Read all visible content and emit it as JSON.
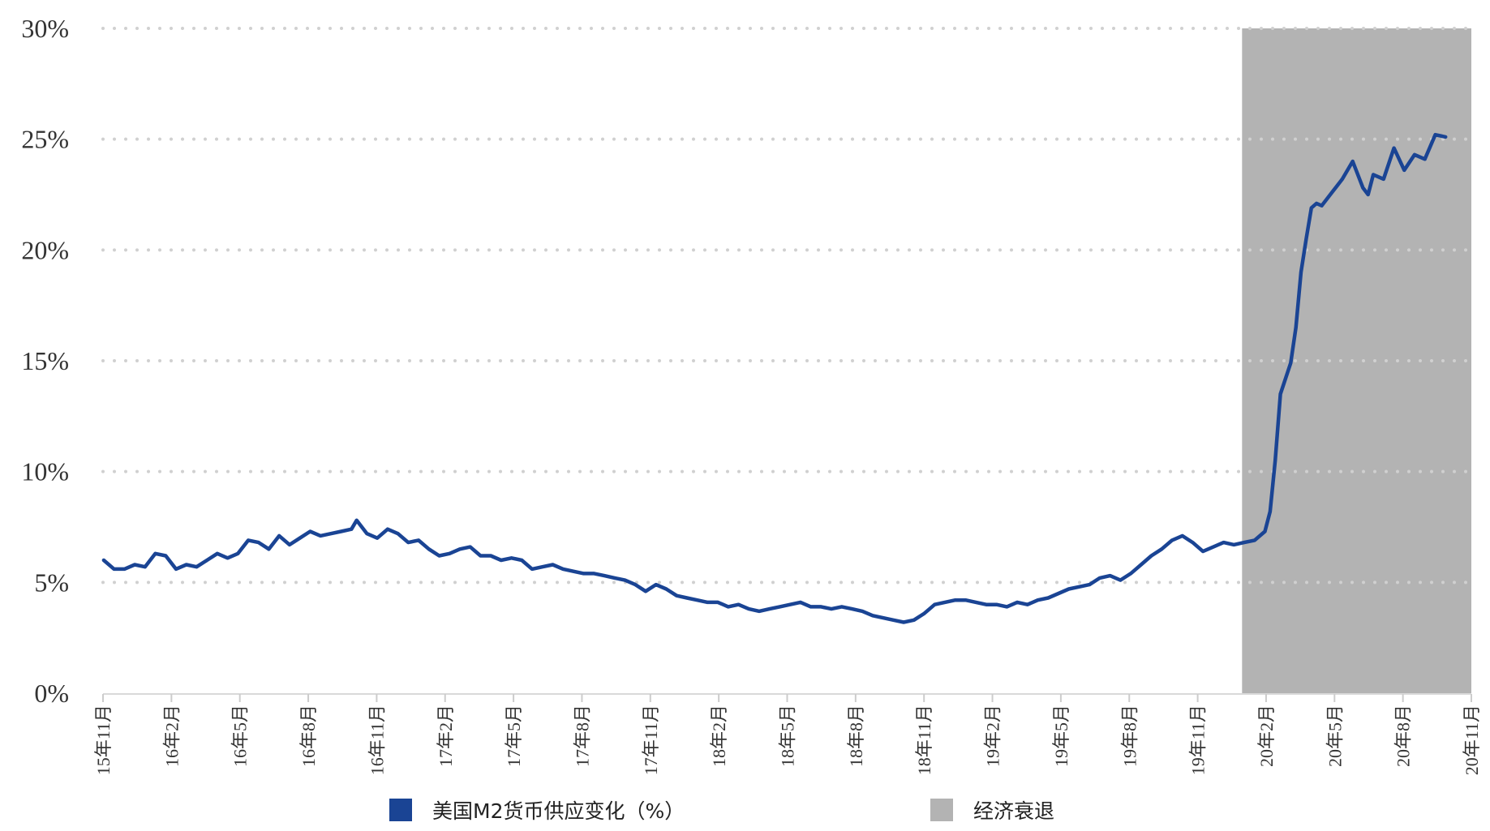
{
  "chart_data": {
    "type": "line",
    "y_axis": {
      "min": 0,
      "max": 30,
      "ticks": [
        "0%",
        "5%",
        "10%",
        "15%",
        "20%",
        "25%",
        "30%"
      ]
    },
    "x_ticks": [
      "15年11月",
      "16年2月",
      "16年5月",
      "16年8月",
      "16年11月",
      "17年2月",
      "17年5月",
      "17年8月",
      "17年11月",
      "18年2月",
      "18年5月",
      "18年8月",
      "18年11月",
      "19年2月",
      "19年5月",
      "19年8月",
      "19年11月",
      "20年2月",
      "20年5月",
      "20年8月",
      "20年11月"
    ],
    "grid": "dotted-horizontal",
    "legend_position": "bottom",
    "colors": {
      "line": "#1a4494",
      "shade": "#b3b3b3"
    },
    "recession": {
      "name": "经济衰退",
      "start": "2020-01-24",
      "end": "2020-11-30"
    },
    "series": [
      {
        "name": "美国M2货币供应变化（%）",
        "color": "#1a4494",
        "points": [
          [
            "2015-11-02",
            6.0
          ],
          [
            "2015-11-16",
            5.6
          ],
          [
            "2015-11-30",
            5.6
          ],
          [
            "2015-12-14",
            5.8
          ],
          [
            "2015-12-28",
            5.7
          ],
          [
            "2016-01-11",
            6.3
          ],
          [
            "2016-01-25",
            6.2
          ],
          [
            "2016-02-08",
            5.6
          ],
          [
            "2016-02-22",
            5.8
          ],
          [
            "2016-03-07",
            5.7
          ],
          [
            "2016-03-21",
            6.0
          ],
          [
            "2016-04-04",
            6.3
          ],
          [
            "2016-04-18",
            6.1
          ],
          [
            "2016-05-02",
            6.3
          ],
          [
            "2016-05-16",
            6.9
          ],
          [
            "2016-05-30",
            6.8
          ],
          [
            "2016-06-13",
            6.5
          ],
          [
            "2016-06-27",
            7.1
          ],
          [
            "2016-07-11",
            6.7
          ],
          [
            "2016-07-25",
            7.0
          ],
          [
            "2016-08-08",
            7.3
          ],
          [
            "2016-08-22",
            7.1
          ],
          [
            "2016-09-05",
            7.2
          ],
          [
            "2016-09-19",
            7.3
          ],
          [
            "2016-10-03",
            7.4
          ],
          [
            "2016-10-10",
            7.8
          ],
          [
            "2016-10-24",
            7.2
          ],
          [
            "2016-11-07",
            7.0
          ],
          [
            "2016-11-21",
            7.4
          ],
          [
            "2016-12-05",
            7.2
          ],
          [
            "2016-12-19",
            6.8
          ],
          [
            "2017-01-02",
            6.9
          ],
          [
            "2017-01-16",
            6.5
          ],
          [
            "2017-01-30",
            6.2
          ],
          [
            "2017-02-13",
            6.3
          ],
          [
            "2017-02-27",
            6.5
          ],
          [
            "2017-03-13",
            6.6
          ],
          [
            "2017-03-27",
            6.2
          ],
          [
            "2017-04-10",
            6.2
          ],
          [
            "2017-04-24",
            6.0
          ],
          [
            "2017-05-08",
            6.1
          ],
          [
            "2017-05-22",
            6.0
          ],
          [
            "2017-06-05",
            5.6
          ],
          [
            "2017-06-19",
            5.7
          ],
          [
            "2017-07-03",
            5.8
          ],
          [
            "2017-07-17",
            5.6
          ],
          [
            "2017-07-31",
            5.5
          ],
          [
            "2017-08-14",
            5.4
          ],
          [
            "2017-08-28",
            5.4
          ],
          [
            "2017-09-11",
            5.3
          ],
          [
            "2017-09-25",
            5.2
          ],
          [
            "2017-10-09",
            5.1
          ],
          [
            "2017-10-23",
            4.9
          ],
          [
            "2017-11-06",
            4.6
          ],
          [
            "2017-11-20",
            4.9
          ],
          [
            "2017-12-04",
            4.7
          ],
          [
            "2017-12-18",
            4.4
          ],
          [
            "2018-01-01",
            4.3
          ],
          [
            "2018-01-15",
            4.2
          ],
          [
            "2018-01-29",
            4.1
          ],
          [
            "2018-02-12",
            4.1
          ],
          [
            "2018-02-26",
            3.9
          ],
          [
            "2018-03-12",
            4.0
          ],
          [
            "2018-03-26",
            3.8
          ],
          [
            "2018-04-09",
            3.7
          ],
          [
            "2018-04-23",
            3.8
          ],
          [
            "2018-05-07",
            3.9
          ],
          [
            "2018-05-21",
            4.0
          ],
          [
            "2018-06-04",
            4.1
          ],
          [
            "2018-06-18",
            3.9
          ],
          [
            "2018-07-02",
            3.9
          ],
          [
            "2018-07-16",
            3.8
          ],
          [
            "2018-07-30",
            3.9
          ],
          [
            "2018-08-13",
            3.8
          ],
          [
            "2018-08-27",
            3.7
          ],
          [
            "2018-09-10",
            3.5
          ],
          [
            "2018-09-24",
            3.4
          ],
          [
            "2018-10-08",
            3.3
          ],
          [
            "2018-10-22",
            3.2
          ],
          [
            "2018-11-05",
            3.3
          ],
          [
            "2018-11-19",
            3.6
          ],
          [
            "2018-12-03",
            4.0
          ],
          [
            "2018-12-17",
            4.1
          ],
          [
            "2018-12-31",
            4.2
          ],
          [
            "2019-01-14",
            4.2
          ],
          [
            "2019-01-28",
            4.1
          ],
          [
            "2019-02-11",
            4.0
          ],
          [
            "2019-02-25",
            4.0
          ],
          [
            "2019-03-11",
            3.9
          ],
          [
            "2019-03-25",
            4.1
          ],
          [
            "2019-04-08",
            4.0
          ],
          [
            "2019-04-22",
            4.2
          ],
          [
            "2019-05-06",
            4.3
          ],
          [
            "2019-05-20",
            4.5
          ],
          [
            "2019-06-03",
            4.7
          ],
          [
            "2019-06-17",
            4.8
          ],
          [
            "2019-07-01",
            4.9
          ],
          [
            "2019-07-15",
            5.2
          ],
          [
            "2019-07-29",
            5.3
          ],
          [
            "2019-08-12",
            5.1
          ],
          [
            "2019-08-26",
            5.4
          ],
          [
            "2019-09-09",
            5.8
          ],
          [
            "2019-09-23",
            6.2
          ],
          [
            "2019-10-07",
            6.5
          ],
          [
            "2019-10-21",
            6.9
          ],
          [
            "2019-11-04",
            7.1
          ],
          [
            "2019-11-18",
            6.8
          ],
          [
            "2019-12-02",
            6.4
          ],
          [
            "2019-12-16",
            6.6
          ],
          [
            "2019-12-30",
            6.8
          ],
          [
            "2020-01-13",
            6.7
          ],
          [
            "2020-01-27",
            6.8
          ],
          [
            "2020-02-10",
            6.9
          ],
          [
            "2020-02-24",
            7.3
          ],
          [
            "2020-03-02",
            8.2
          ],
          [
            "2020-03-09",
            10.5
          ],
          [
            "2020-03-16",
            13.5
          ],
          [
            "2020-03-30",
            14.9
          ],
          [
            "2020-04-06",
            16.5
          ],
          [
            "2020-04-13",
            19.0
          ],
          [
            "2020-04-20",
            20.5
          ],
          [
            "2020-04-27",
            21.9
          ],
          [
            "2020-05-04",
            22.1
          ],
          [
            "2020-05-11",
            22.0
          ],
          [
            "2020-05-25",
            22.6
          ],
          [
            "2020-06-08",
            23.2
          ],
          [
            "2020-06-22",
            24.0
          ],
          [
            "2020-07-06",
            22.8
          ],
          [
            "2020-07-13",
            22.5
          ],
          [
            "2020-07-20",
            23.4
          ],
          [
            "2020-08-03",
            23.2
          ],
          [
            "2020-08-17",
            24.6
          ],
          [
            "2020-08-31",
            23.6
          ],
          [
            "2020-09-14",
            24.3
          ],
          [
            "2020-09-28",
            24.1
          ],
          [
            "2020-10-12",
            25.2
          ],
          [
            "2020-10-26",
            25.1
          ]
        ]
      }
    ]
  }
}
